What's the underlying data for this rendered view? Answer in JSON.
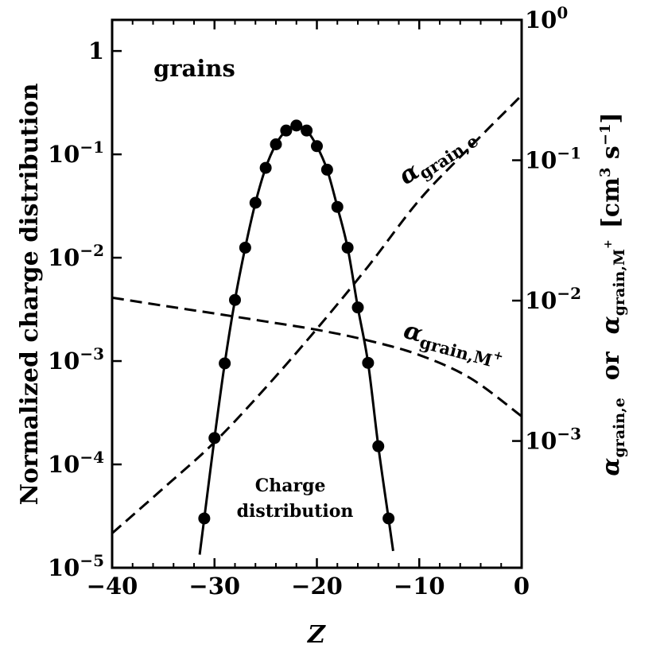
{
  "chart_data": {
    "type": "line",
    "title": "",
    "panel_label": "grains",
    "xlabel": "Z",
    "ylabel_left": "Normalized charge distribution",
    "ylabel_right_parts": [
      "α",
      "grain,e",
      "or",
      "α",
      "grain,M",
      "+",
      "[cm",
      "3",
      " s",
      "−1",
      "]"
    ],
    "xlim": [
      -40,
      0
    ],
    "ylim_left": [
      1e-05,
      2
    ],
    "ylim_right": [
      0.000125,
      1
    ],
    "x_ticks": [
      -40,
      -30,
      -20,
      -10,
      0
    ],
    "x_tick_labels": [
      "−40",
      "−30",
      "−20",
      "−10",
      "0"
    ],
    "y_left_ticks": [
      {
        "value": 1,
        "base": "1",
        "exp": ""
      },
      {
        "value": 0.1,
        "base": "10",
        "exp": "−1"
      },
      {
        "value": 0.01,
        "base": "10",
        "exp": "−2"
      },
      {
        "value": 0.001,
        "base": "10",
        "exp": "−3"
      },
      {
        "value": 0.0001,
        "base": "10",
        "exp": "−4"
      },
      {
        "value": 1e-05,
        "base": "10",
        "exp": "−5"
      }
    ],
    "y_right_ticks": [
      {
        "value": 1,
        "base": "10",
        "exp": "0"
      },
      {
        "value": 0.1,
        "base": "10",
        "exp": "−1"
      },
      {
        "value": 0.01,
        "base": "10",
        "exp": "−2"
      },
      {
        "value": 0.001,
        "base": "10",
        "exp": "−3"
      }
    ],
    "series": [
      {
        "name": "Charge distribution",
        "axis": "left",
        "style": "solid",
        "label_lines": [
          "Charge",
          "distribution"
        ],
        "points": [
          {
            "x": -31,
            "y": 3e-05
          },
          {
            "x": -30,
            "y": 0.00018
          },
          {
            "x": -29,
            "y": 0.00095
          },
          {
            "x": -28,
            "y": 0.0039
          },
          {
            "x": -27,
            "y": 0.0125
          },
          {
            "x": -26,
            "y": 0.034
          },
          {
            "x": -25,
            "y": 0.074
          },
          {
            "x": -24,
            "y": 0.125
          },
          {
            "x": -23,
            "y": 0.17
          },
          {
            "x": -22,
            "y": 0.19
          },
          {
            "x": -21,
            "y": 0.17
          },
          {
            "x": -20,
            "y": 0.12
          },
          {
            "x": -19,
            "y": 0.071
          },
          {
            "x": -18,
            "y": 0.031
          },
          {
            "x": -17,
            "y": 0.0125
          },
          {
            "x": -16,
            "y": 0.0033
          },
          {
            "x": -15,
            "y": 0.00096
          },
          {
            "x": -14,
            "y": 0.00015
          },
          {
            "x": -13,
            "y": 3e-05
          }
        ]
      },
      {
        "name": "alpha_grain_e",
        "axis": "right",
        "style": "dashed",
        "label_main": "α",
        "label_sub": "grain,e",
        "label_sup": "",
        "points": [
          {
            "x": -40,
            "y": 0.00022
          },
          {
            "x": -35,
            "y": 0.00046
          },
          {
            "x": -30,
            "y": 0.00098
          },
          {
            "x": -25,
            "y": 0.0024
          },
          {
            "x": -20,
            "y": 0.0063
          },
          {
            "x": -15,
            "y": 0.0175
          },
          {
            "x": -10,
            "y": 0.052
          },
          {
            "x": -5,
            "y": 0.125
          },
          {
            "x": 0,
            "y": 0.29
          }
        ]
      },
      {
        "name": "alpha_grain_M+",
        "axis": "right",
        "style": "dashed",
        "label_main": "α",
        "label_sub": "grain,M",
        "label_sup": "+",
        "points": [
          {
            "x": -40,
            "y": 0.0105
          },
          {
            "x": -35,
            "y": 0.0092
          },
          {
            "x": -30,
            "y": 0.0081
          },
          {
            "x": -25,
            "y": 0.0071
          },
          {
            "x": -20,
            "y": 0.0062
          },
          {
            "x": -15,
            "y": 0.0052
          },
          {
            "x": -10,
            "y": 0.0041
          },
          {
            "x": -5,
            "y": 0.0028
          },
          {
            "x": 0,
            "y": 0.0015
          }
        ]
      }
    ]
  }
}
